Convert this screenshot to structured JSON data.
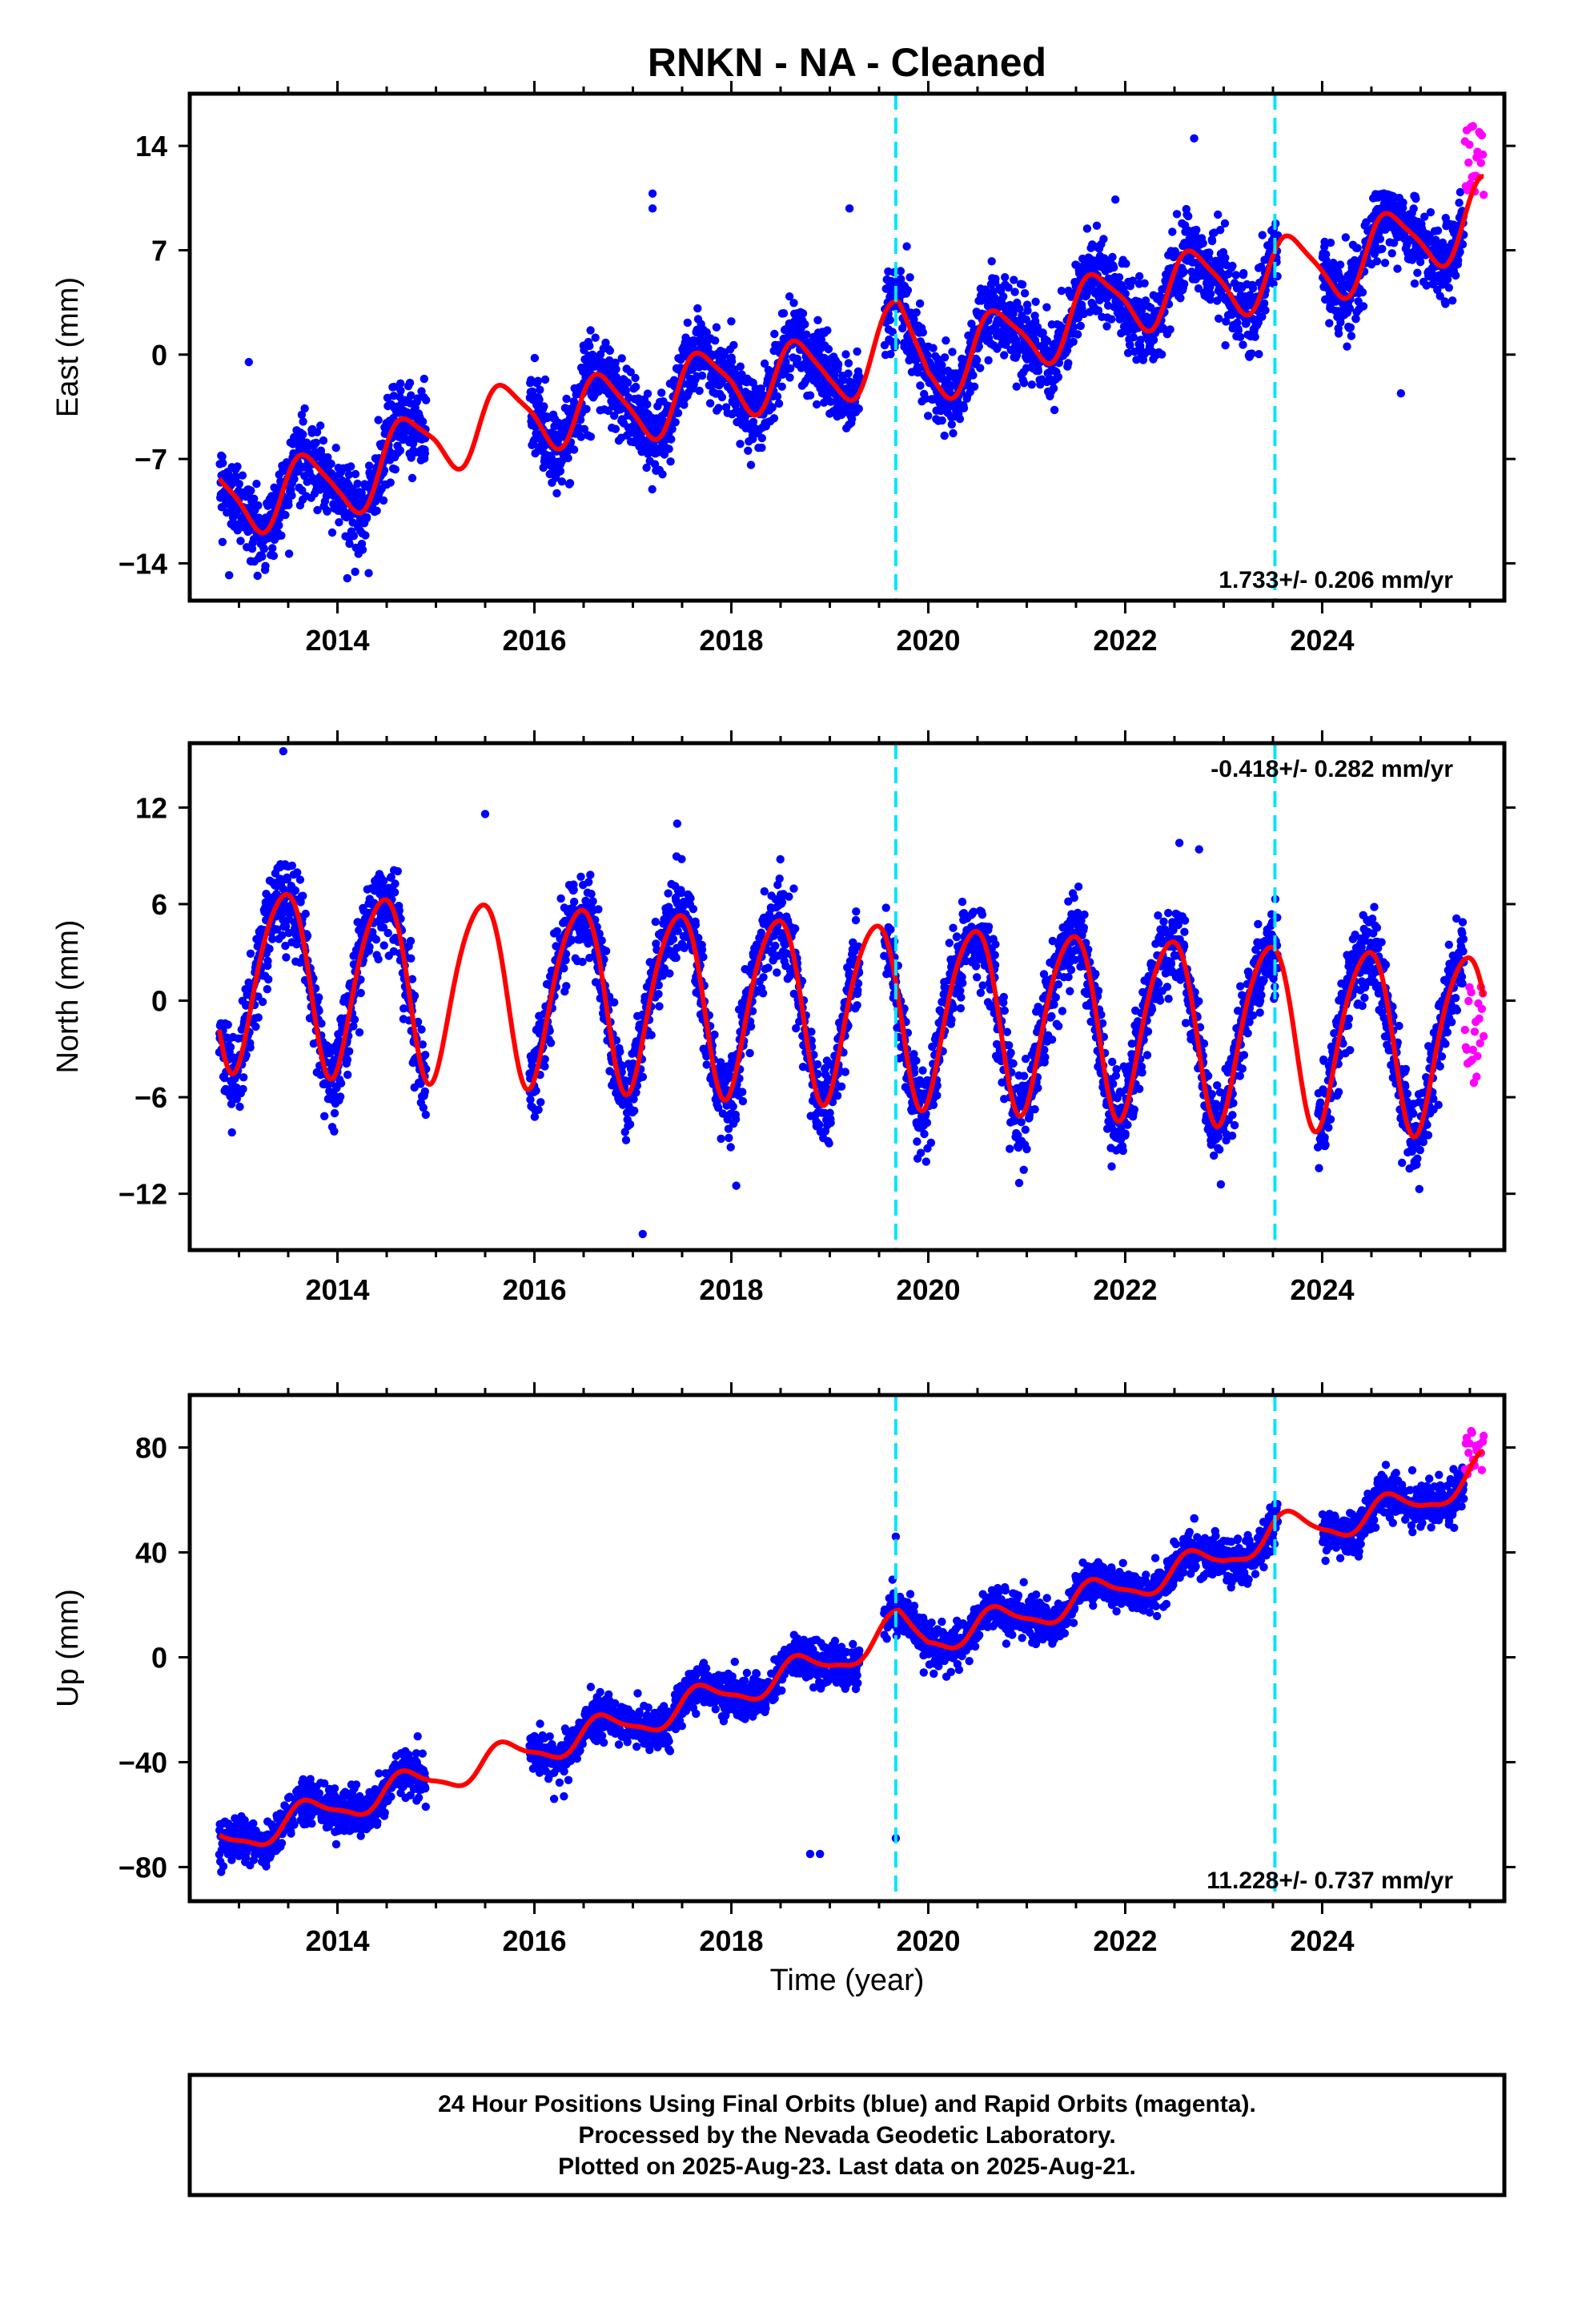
{
  "title": "RNKN  - NA - Cleaned",
  "xlabel": "Time (year)",
  "x_ticks": [
    "2014",
    "2016",
    "2018",
    "2020",
    "2022",
    "2024"
  ],
  "footer": {
    "line1": "24 Hour Positions Using Final Orbits (blue) and Rapid Orbits (magenta).",
    "line2": "Processed by the Nevada Geodetic Laboratory.",
    "line3": "Plotted on 2025-Aug-23. Last data on 2025-Aug-21."
  },
  "colors": {
    "final_orbits": "#0000ff",
    "rapid_orbits": "#ff00ff",
    "model": "#ff0000",
    "equipment_change": "#00e5ff"
  },
  "chart_data": [
    {
      "type": "scatter",
      "ylabel": "East (mm)",
      "xlim": [
        2012.5,
        2025.85
      ],
      "ylim": [
        -16.5,
        17.5
      ],
      "y_ticks": [
        "14",
        "7",
        "0",
        "-7",
        "-14"
      ],
      "rate_text": "1.733+/- 0.206 mm/yr",
      "rate_position": "bottom-right",
      "equipment_changes": [
        2019.67,
        2023.52
      ],
      "rate_mm_per_yr": 1.733,
      "annual": {
        "amplitude": 2.3,
        "peak_month_fraction": 0.7
      },
      "semiannual": {
        "amplitude": 0.5,
        "phase": 0.1
      },
      "model_knots": [
        [
          2012.8,
          -9.7
        ],
        [
          2014.0,
          -8.8
        ],
        [
          2015.0,
          -5.5
        ],
        [
          2016.0,
          -3.8
        ],
        [
          2017.0,
          -3.6
        ],
        [
          2018.0,
          -1.5
        ],
        [
          2019.0,
          -1.4
        ],
        [
          2019.7,
          1.4
        ],
        [
          2020.0,
          -0.9
        ],
        [
          2021.0,
          1.4
        ],
        [
          2022.0,
          3.9
        ],
        [
          2023.0,
          5.0
        ],
        [
          2023.5,
          5.5
        ],
        [
          2024.0,
          5.9
        ],
        [
          2025.0,
          7.8
        ],
        [
          2025.6,
          9.6
        ]
      ],
      "noise_sd": 1.3,
      "data_gaps": [
        [
          2014.9,
          2015.95
        ],
        [
          2019.3,
          2019.55
        ],
        [
          2023.55,
          2024.0
        ]
      ],
      "outliers": [
        [
          2017.2,
          9.8
        ],
        [
          2017.2,
          10.8
        ],
        [
          2021.9,
          10.4
        ],
        [
          2022.7,
          14.5
        ],
        [
          2019.2,
          9.8
        ],
        [
          2024.8,
          -2.6
        ],
        [
          2013.1,
          -0.5
        ],
        [
          2012.9,
          -14.8
        ],
        [
          2014.1,
          -15.0
        ]
      ],
      "rapid": {
        "x_range": [
          2025.45,
          2025.64
        ],
        "center": 13.0,
        "spread": 5.0
      }
    },
    {
      "type": "scatter",
      "ylabel": "North (mm)",
      "xlim": [
        2012.5,
        2025.85
      ],
      "ylim": [
        -15.5,
        16.0
      ],
      "y_ticks": [
        "12",
        "6",
        "0",
        "-6",
        "-12"
      ],
      "rate_text": "-0.418+/- 0.282 mm/yr",
      "rate_position": "top-right",
      "equipment_changes": [
        2019.67,
        2023.52
      ],
      "rate_mm_per_yr": -0.418,
      "annual": {
        "amplitude": 5.6,
        "peak_month_fraction": 0.45
      },
      "semiannual": {
        "amplitude": 0.7,
        "phase": 0.3
      },
      "model_knots": [
        [
          2012.8,
          1.7
        ],
        [
          2025.6,
          -2.5
        ]
      ],
      "noise_sd": 1.3,
      "data_gaps": [
        [
          2014.9,
          2015.95
        ],
        [
          2019.3,
          2019.55
        ],
        [
          2023.55,
          2023.95
        ]
      ],
      "outliers": [
        [
          2013.45,
          15.5
        ],
        [
          2015.5,
          11.6
        ],
        [
          2017.1,
          -14.5
        ],
        [
          2018.05,
          -11.5
        ],
        [
          2017.45,
          11.0
        ],
        [
          2022.55,
          9.8
        ],
        [
          2022.75,
          9.4
        ]
      ],
      "rapid": {
        "x_range": [
          2025.45,
          2025.64
        ],
        "center": -2.0,
        "spread": 7.0
      }
    },
    {
      "type": "scatter",
      "ylabel": "Up (mm)",
      "xlim": [
        2012.5,
        2025.85
      ],
      "ylim": [
        -93,
        100
      ],
      "y_ticks": [
        "80",
        "40",
        "0",
        "-40",
        "-80"
      ],
      "rate_text": "11.228+/- 0.737 mm/yr",
      "rate_position": "bottom-right",
      "equipment_changes": [
        2019.67,
        2023.52
      ],
      "rate_mm_per_yr": 11.228,
      "annual": {
        "amplitude": 5.5,
        "peak_month_fraction": 0.7
      },
      "semiannual": {
        "amplitude": 1.5,
        "phase": 0.2
      },
      "model_knots": [
        [
          2012.8,
          -71
        ],
        [
          2014.0,
          -57
        ],
        [
          2015.0,
          -46
        ],
        [
          2016.0,
          -35
        ],
        [
          2017.0,
          -25
        ],
        [
          2018.0,
          -13
        ],
        [
          2019.0,
          -2
        ],
        [
          2019.7,
          12
        ],
        [
          2020.0,
          7
        ],
        [
          2021.0,
          16
        ],
        [
          2022.0,
          27
        ],
        [
          2023.0,
          38
        ],
        [
          2023.5,
          49
        ],
        [
          2024.0,
          50
        ],
        [
          2025.0,
          59
        ],
        [
          2025.6,
          72
        ]
      ],
      "noise_sd": 4.0,
      "data_gaps": [
        [
          2014.9,
          2015.95
        ],
        [
          2019.3,
          2019.55
        ],
        [
          2023.55,
          2024.0
        ]
      ],
      "outliers": [
        [
          2018.8,
          -75
        ],
        [
          2018.9,
          -75
        ],
        [
          2019.67,
          -69
        ],
        [
          2019.67,
          46
        ],
        [
          2022.7,
          53
        ],
        [
          2016.2,
          -54
        ],
        [
          2016.3,
          -53
        ]
      ],
      "rapid": {
        "x_range": [
          2025.45,
          2025.64
        ],
        "center": 78,
        "spread": 18
      }
    }
  ]
}
